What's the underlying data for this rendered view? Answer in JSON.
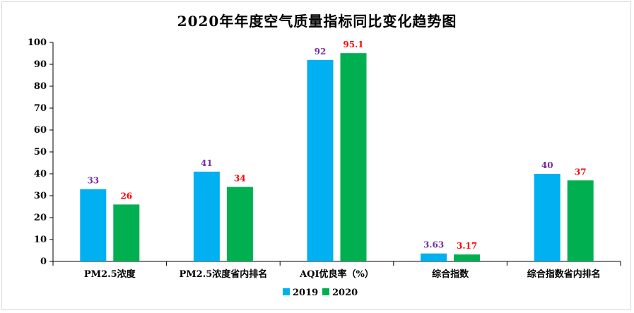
{
  "chart_data": {
    "type": "bar",
    "title": "2020年年度空气质量指标同比变化趋势图",
    "categories": [
      "PM2.5浓度",
      "PM2.5浓度省内排名",
      "AQI优良率（%）",
      "综合指数",
      "综合指数省内排名"
    ],
    "series": [
      {
        "name": "2019",
        "color": "#00b0f0",
        "label_color": "#7030a0",
        "values": [
          33,
          41,
          92,
          3.63,
          40
        ],
        "labels": [
          "33",
          "41",
          "92",
          "3.63",
          "40"
        ]
      },
      {
        "name": "2020",
        "color": "#00b050",
        "label_color": "#ff0000",
        "values": [
          26,
          34,
          95.1,
          3.17,
          37
        ],
        "labels": [
          "26",
          "34",
          "95.1",
          "3.17",
          "37"
        ]
      }
    ],
    "yticks": [
      "0",
      "10",
      "20",
      "30",
      "40",
      "50",
      "60",
      "70",
      "80",
      "90",
      "100"
    ],
    "ylim": [
      0,
      100
    ],
    "xlabel": "",
    "ylabel": "",
    "legend": "bottom-center",
    "grid": false
  }
}
